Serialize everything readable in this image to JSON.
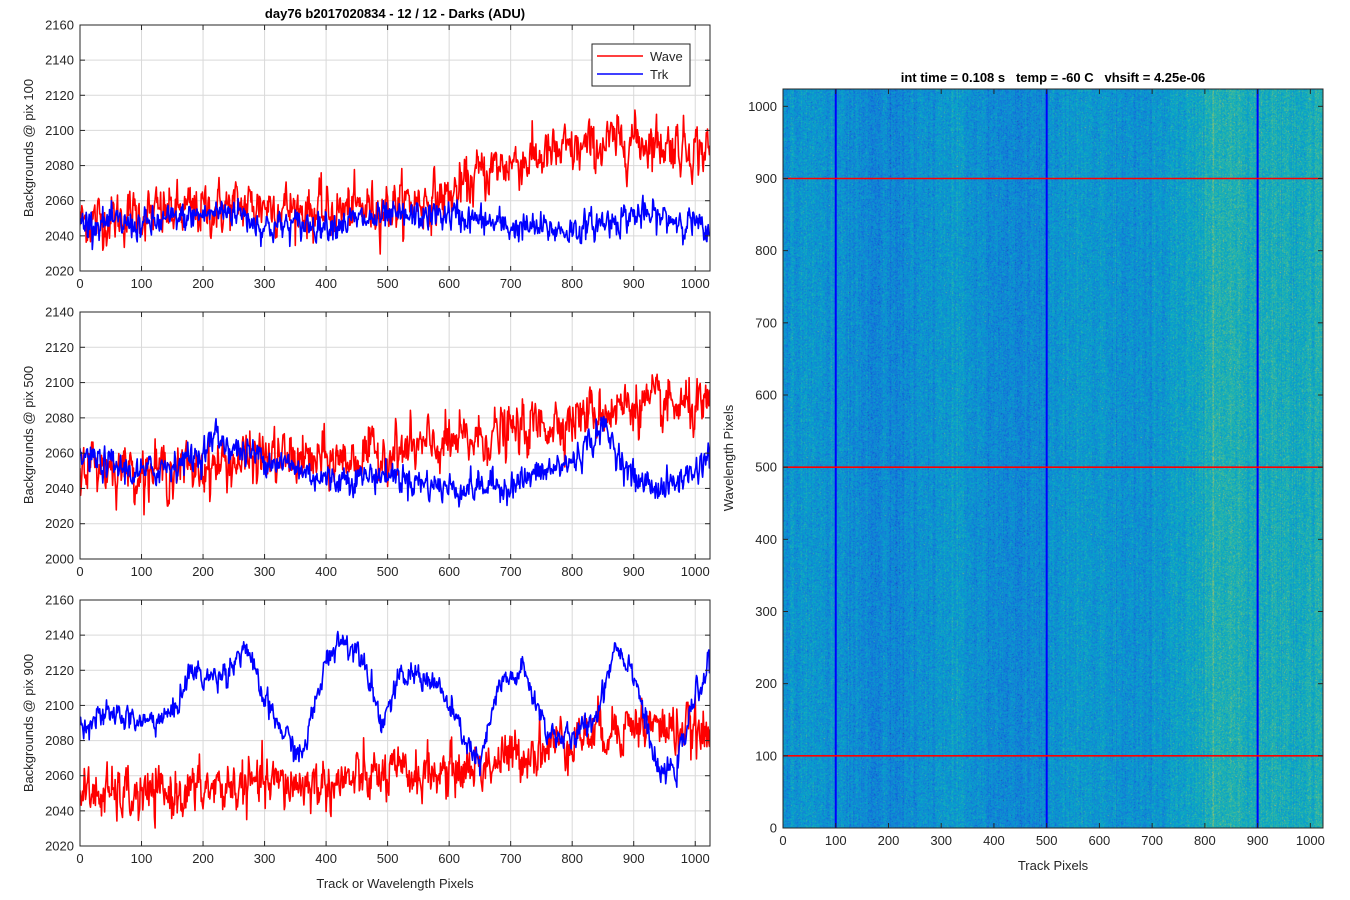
{
  "colors": {
    "wave": "#ff0000",
    "trk": "#0000ff",
    "grid": "#d9d9d9",
    "axis": "#262626"
  },
  "chart_data": [
    {
      "type": "line",
      "title": "day76 b2017020834 - 12 / 12 - Darks (ADU)",
      "xlabel": "",
      "ylabel": "Backgrounds @ pix 100",
      "xlim": [
        0,
        1024
      ],
      "ylim": [
        2020,
        2160
      ],
      "xticks": [
        0,
        100,
        200,
        300,
        400,
        500,
        600,
        700,
        800,
        900,
        1000
      ],
      "yticks": [
        2020,
        2040,
        2060,
        2080,
        2100,
        2120,
        2140,
        2160
      ],
      "grid": true,
      "legend": {
        "position": "top-right",
        "entries": [
          "Wave",
          "Trk"
        ]
      },
      "series": [
        {
          "name": "Wave",
          "color": "#ff0000",
          "x": [
            0,
            100,
            200,
            300,
            400,
            500,
            600,
            650,
            700,
            800,
            900,
            1000,
            1024
          ],
          "y": [
            2048,
            2052,
            2055,
            2058,
            2053,
            2057,
            2062,
            2075,
            2082,
            2088,
            2095,
            2090,
            2088
          ],
          "noise": 12
        },
        {
          "name": "Trk",
          "color": "#0000ff",
          "x": [
            0,
            100,
            200,
            250,
            300,
            400,
            500,
            600,
            700,
            800,
            900,
            1000,
            1024
          ],
          "y": [
            2048,
            2046,
            2052,
            2055,
            2045,
            2047,
            2050,
            2052,
            2045,
            2043,
            2052,
            2048,
            2036
          ],
          "noise": 7
        }
      ]
    },
    {
      "type": "line",
      "title": "",
      "xlabel": "",
      "ylabel": "Backgrounds @ pix 500",
      "xlim": [
        0,
        1024
      ],
      "ylim": [
        2000,
        2140
      ],
      "xticks": [
        0,
        100,
        200,
        300,
        400,
        500,
        600,
        700,
        800,
        900,
        1000
      ],
      "yticks": [
        2000,
        2020,
        2040,
        2060,
        2080,
        2100,
        2120,
        2140
      ],
      "grid": true,
      "series": [
        {
          "name": "Wave",
          "color": "#ff0000",
          "x": [
            0,
            100,
            200,
            300,
            400,
            500,
            600,
            700,
            800,
            900,
            1000,
            1024
          ],
          "y": [
            2055,
            2050,
            2052,
            2058,
            2055,
            2060,
            2065,
            2072,
            2080,
            2088,
            2085,
            2082
          ],
          "noise": 12
        },
        {
          "name": "Trk",
          "color": "#0000ff",
          "x": [
            0,
            100,
            200,
            220,
            250,
            300,
            400,
            500,
            600,
            700,
            800,
            850,
            900,
            950,
            1000,
            1024
          ],
          "y": [
            2058,
            2048,
            2060,
            2070,
            2062,
            2058,
            2045,
            2048,
            2040,
            2042,
            2055,
            2075,
            2045,
            2040,
            2050,
            2060
          ],
          "noise": 7
        }
      ]
    },
    {
      "type": "line",
      "title": "",
      "xlabel": "Track or Wavelength Pixels",
      "ylabel": "Backgrounds @ pix 900",
      "xlim": [
        0,
        1024
      ],
      "ylim": [
        2020,
        2160
      ],
      "xticks": [
        0,
        100,
        200,
        300,
        400,
        500,
        600,
        700,
        800,
        900,
        1000
      ],
      "yticks": [
        2020,
        2040,
        2060,
        2080,
        2100,
        2120,
        2140,
        2160
      ],
      "grid": true,
      "series": [
        {
          "name": "Wave",
          "color": "#ff0000",
          "x": [
            0,
            100,
            200,
            300,
            400,
            500,
            600,
            700,
            800,
            900,
            1000,
            1024
          ],
          "y": [
            2050,
            2048,
            2052,
            2055,
            2055,
            2060,
            2062,
            2070,
            2082,
            2090,
            2085,
            2080
          ],
          "noise": 12
        },
        {
          "name": "Trk",
          "color": "#0000ff",
          "x": [
            0,
            60,
            100,
            150,
            180,
            210,
            240,
            270,
            290,
            320,
            360,
            400,
            420,
            460,
            490,
            520,
            550,
            580,
            620,
            650,
            680,
            720,
            760,
            800,
            840,
            870,
            900,
            940,
            970,
            1000,
            1024
          ],
          "y": [
            2090,
            2095,
            2090,
            2095,
            2120,
            2115,
            2120,
            2135,
            2110,
            2090,
            2070,
            2125,
            2138,
            2130,
            2090,
            2115,
            2118,
            2112,
            2085,
            2065,
            2110,
            2120,
            2085,
            2080,
            2095,
            2135,
            2120,
            2060,
            2065,
            2105,
            2125
          ],
          "noise": 6
        }
      ]
    },
    {
      "type": "heatmap",
      "title": "int time = 0.108 s   temp = -60 C   vhsift = 4.25e-06",
      "xlabel": "Track Pixels",
      "ylabel": "Wavelength Pixels",
      "xlim": [
        0,
        1024
      ],
      "ylim": [
        0,
        1024
      ],
      "xticks": [
        0,
        100,
        200,
        300,
        400,
        500,
        600,
        700,
        800,
        900,
        1000
      ],
      "yticks": [
        0,
        100,
        200,
        300,
        400,
        500,
        600,
        700,
        800,
        900,
        1000
      ],
      "colormap": "parula",
      "vertical_markers": {
        "color": "#0000ff",
        "x": [
          100,
          500,
          900
        ]
      },
      "horizontal_markers": {
        "color": "#ff0000",
        "y": [
          100,
          500,
          900
        ]
      }
    }
  ]
}
